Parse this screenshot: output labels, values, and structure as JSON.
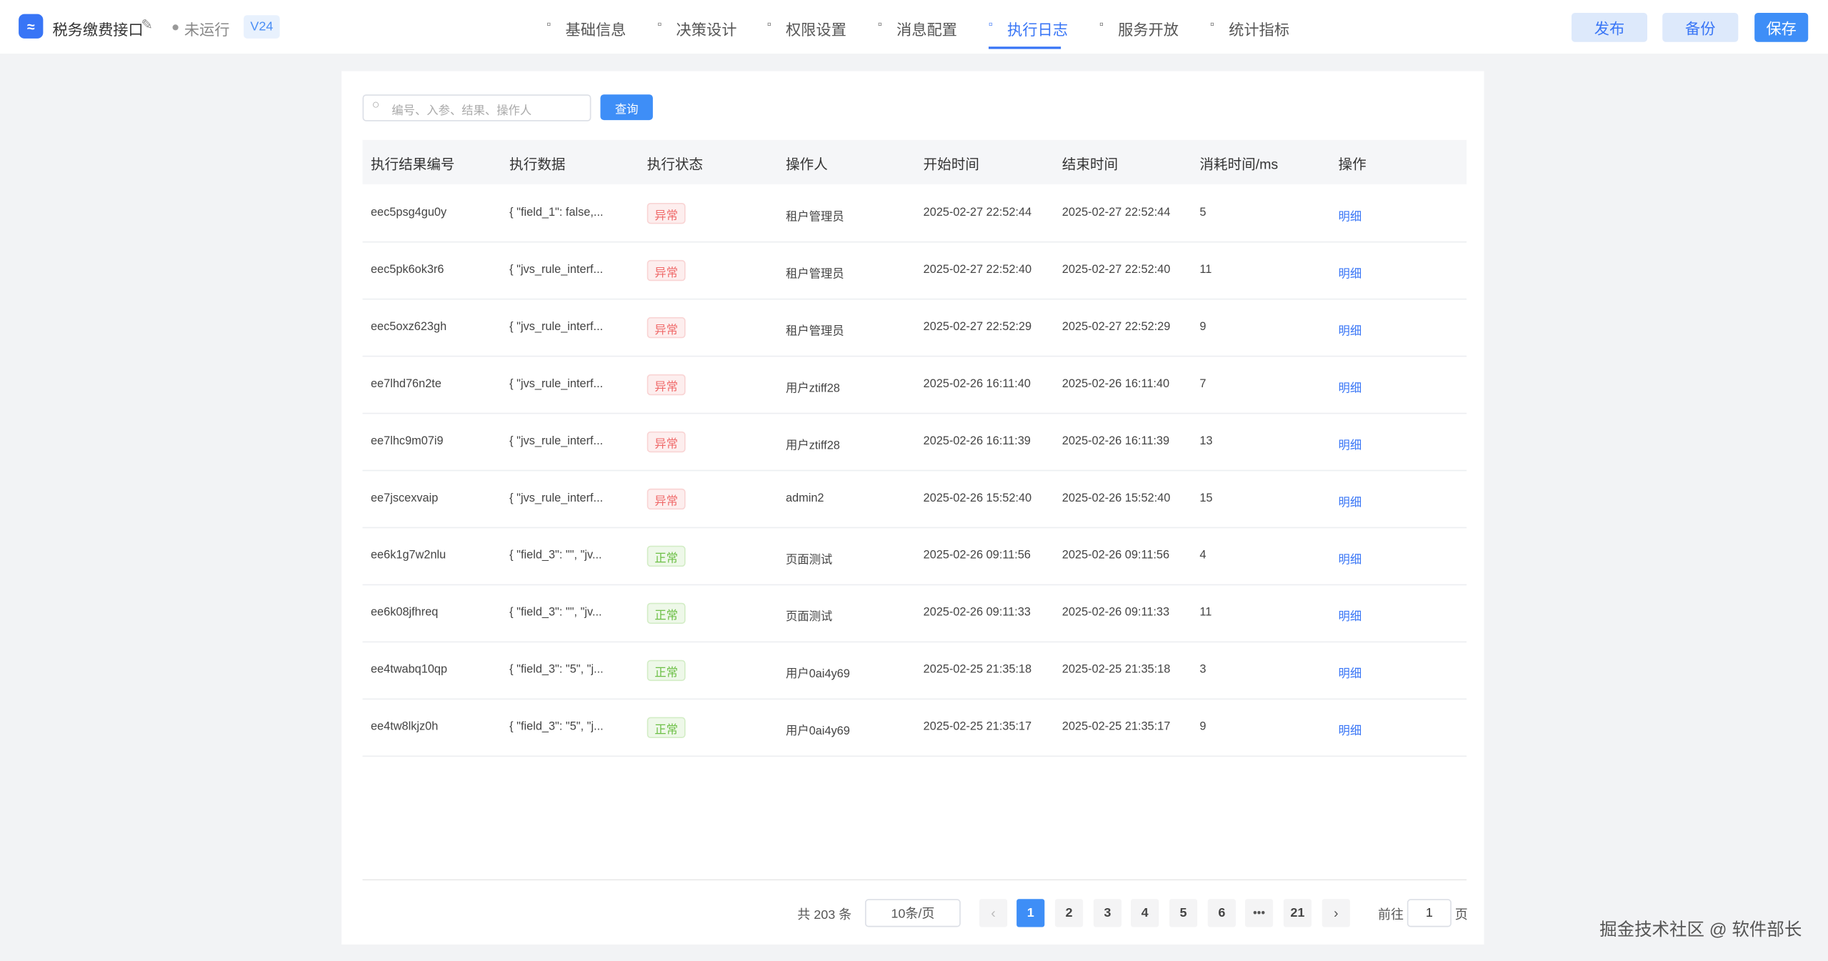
{
  "header": {
    "app_name": "税务缴费接口",
    "status": "未运行",
    "version": "V24",
    "tabs": [
      {
        "label": "基础信息",
        "active": false
      },
      {
        "label": "决策设计",
        "active": false
      },
      {
        "label": "权限设置",
        "active": false
      },
      {
        "label": "消息配置",
        "active": false
      },
      {
        "label": "执行日志",
        "active": true
      },
      {
        "label": "服务开放",
        "active": false
      },
      {
        "label": "统计指标",
        "active": false
      }
    ],
    "buttons": [
      {
        "label": "发布",
        "primary": false
      },
      {
        "label": "备份",
        "primary": false
      },
      {
        "label": "保存",
        "primary": true
      }
    ]
  },
  "search": {
    "placeholder": "编号、入参、结果、操作人",
    "button": "查询"
  },
  "table": {
    "columns": [
      "执行结果编号",
      "执行数据",
      "执行状态",
      "操作人",
      "开始时间",
      "结束时间",
      "消耗时间/ms",
      "操作"
    ],
    "rows": [
      {
        "id": "eec5psg4gu0y",
        "data": "{ \"field_1\": false,...",
        "status": {
          "text": "异常",
          "tone": "danger"
        },
        "operator": "租户管理员",
        "start": "2025-02-27 22:52:44",
        "end": "2025-02-27 22:52:44",
        "ms": 5,
        "action": "明细"
      },
      {
        "id": "eec5pk6ok3r6",
        "data": "{ \"jvs_rule_interf...",
        "status": {
          "text": "异常",
          "tone": "danger"
        },
        "operator": "租户管理员",
        "start": "2025-02-27 22:52:40",
        "end": "2025-02-27 22:52:40",
        "ms": 11,
        "action": "明细"
      },
      {
        "id": "eec5oxz623gh",
        "data": "{ \"jvs_rule_interf...",
        "status": {
          "text": "异常",
          "tone": "danger"
        },
        "operator": "租户管理员",
        "start": "2025-02-27 22:52:29",
        "end": "2025-02-27 22:52:29",
        "ms": 9,
        "action": "明细"
      },
      {
        "id": "ee7lhd76n2te",
        "data": "{ \"jvs_rule_interf...",
        "status": {
          "text": "异常",
          "tone": "danger"
        },
        "operator": "用户ztiff28",
        "start": "2025-02-26 16:11:40",
        "end": "2025-02-26 16:11:40",
        "ms": 7,
        "action": "明细"
      },
      {
        "id": "ee7lhc9m07i9",
        "data": "{ \"jvs_rule_interf...",
        "status": {
          "text": "异常",
          "tone": "danger"
        },
        "operator": "用户ztiff28",
        "start": "2025-02-26 16:11:39",
        "end": "2025-02-26 16:11:39",
        "ms": 13,
        "action": "明细"
      },
      {
        "id": "ee7jscexvaip",
        "data": "{ \"jvs_rule_interf...",
        "status": {
          "text": "异常",
          "tone": "danger"
        },
        "operator": "admin2",
        "start": "2025-02-26 15:52:40",
        "end": "2025-02-26 15:52:40",
        "ms": 15,
        "action": "明细"
      },
      {
        "id": "ee6k1g7w2nlu",
        "data": "{ \"field_3\": \"\", \"jv...",
        "status": {
          "text": "正常",
          "tone": "success"
        },
        "operator": "页面测试",
        "start": "2025-02-26 09:11:56",
        "end": "2025-02-26 09:11:56",
        "ms": 4,
        "action": "明细"
      },
      {
        "id": "ee6k08jfhreq",
        "data": "{ \"field_3\": \"\", \"jv...",
        "status": {
          "text": "正常",
          "tone": "success"
        },
        "operator": "页面测试",
        "start": "2025-02-26 09:11:33",
        "end": "2025-02-26 09:11:33",
        "ms": 11,
        "action": "明细"
      },
      {
        "id": "ee4twabq10qp",
        "data": "{ \"field_3\": \"5\", \"j...",
        "status": {
          "text": "正常",
          "tone": "success"
        },
        "operator": "用户0ai4y69",
        "start": "2025-02-25 21:35:18",
        "end": "2025-02-25 21:35:18",
        "ms": 3,
        "action": "明细"
      },
      {
        "id": "ee4tw8lkjz0h",
        "data": "{ \"field_3\": \"5\", \"j...",
        "status": {
          "text": "正常",
          "tone": "success"
        },
        "operator": "用户0ai4y69",
        "start": "2025-02-25 21:35:17",
        "end": "2025-02-25 21:35:17",
        "ms": 9,
        "action": "明细"
      }
    ]
  },
  "pagination": {
    "total": "共 203 条",
    "page_size": "10条/页",
    "pages": [
      {
        "label": "1",
        "active": true
      },
      {
        "label": "2",
        "active": false
      },
      {
        "label": "3",
        "active": false
      },
      {
        "label": "4",
        "active": false
      },
      {
        "label": "5",
        "active": false
      },
      {
        "label": "6",
        "active": false
      },
      {
        "label": "21",
        "active": false
      }
    ],
    "goto_label": "前往",
    "goto_value": "1",
    "page_unit": "页"
  },
  "watermark": "掘金技术社区 @ 软件部长"
}
